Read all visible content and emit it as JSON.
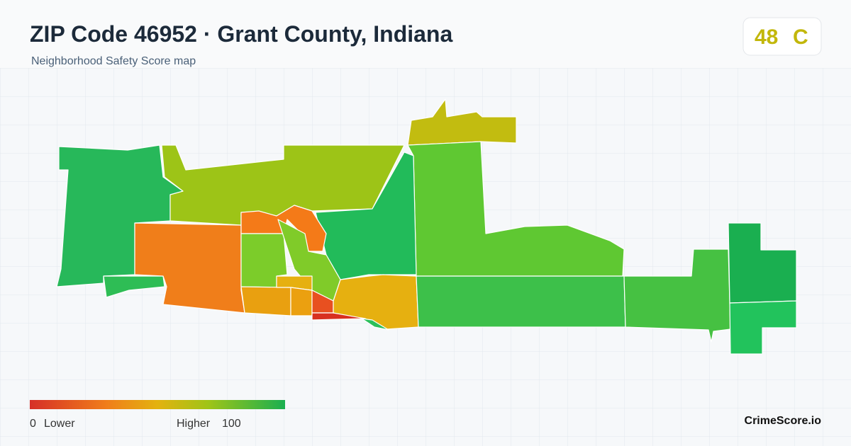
{
  "header": {
    "title": "ZIP Code 46952 · Grant County, Indiana",
    "subtitle": "Neighborhood Safety Score map"
  },
  "score": {
    "value": 48,
    "grade": "C"
  },
  "legend": {
    "min": 0,
    "min_label": "Lower",
    "max_label": "Higher",
    "max": 100
  },
  "brand": "CrimeScore.io"
}
